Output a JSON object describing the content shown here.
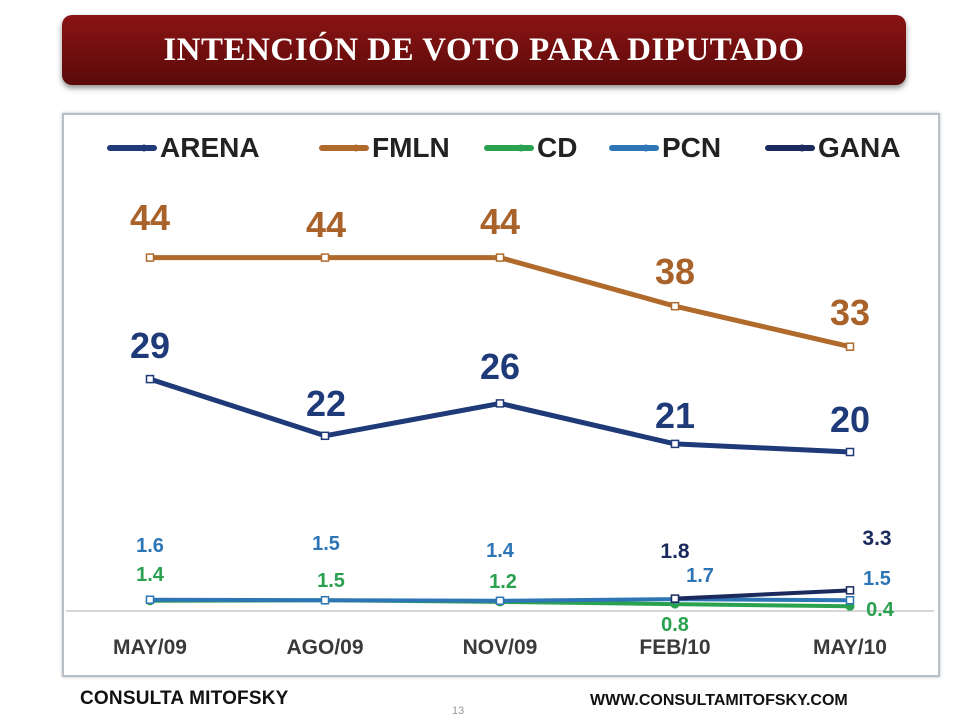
{
  "header": {
    "title": "INTENCIÓN DE VOTO PARA DIPUTADO"
  },
  "footer": {
    "brand": "CONSULTA MITOFSKY",
    "page_number": "13",
    "website": "WWW.CONSULTAMITOFSKY.COM"
  },
  "chart_data": {
    "type": "line",
    "title": "INTENCIÓN DE VOTO PARA DIPUTADO",
    "categories": [
      "MAY/09",
      "AGO/09",
      "NOV/09",
      "FEB/10",
      "MAY/10"
    ],
    "legend_position": "top",
    "series": [
      {
        "name": "ARENA",
        "color": "#1f3a78",
        "values": [
          29,
          22,
          26,
          21,
          20
        ],
        "labels": [
          "29",
          "22",
          "26",
          "21",
          "20"
        ]
      },
      {
        "name": "FMLN",
        "color": "#b06a2c",
        "values": [
          44,
          44,
          44,
          38,
          33
        ],
        "labels": [
          "44",
          "44",
          "44",
          "38",
          "33"
        ]
      },
      {
        "name": "CD",
        "color": "#2aa14f",
        "values": [
          1.4,
          1.5,
          1.2,
          0.8,
          0.4
        ],
        "labels": [
          "1.4",
          "1.5",
          "1.2",
          "0.8",
          "0.4"
        ]
      },
      {
        "name": "PCN",
        "color": "#2e75b6",
        "values": [
          1.6,
          1.5,
          1.4,
          1.7,
          1.5
        ],
        "labels": [
          "1.6",
          "1.5",
          "1.4",
          "1.7",
          "1.5"
        ]
      },
      {
        "name": "GANA",
        "color": "#1b2a5c",
        "values": [
          null,
          null,
          null,
          1.8,
          3.3
        ],
        "labels": [
          "",
          "",
          "",
          "1.8",
          "3.3"
        ]
      }
    ]
  }
}
